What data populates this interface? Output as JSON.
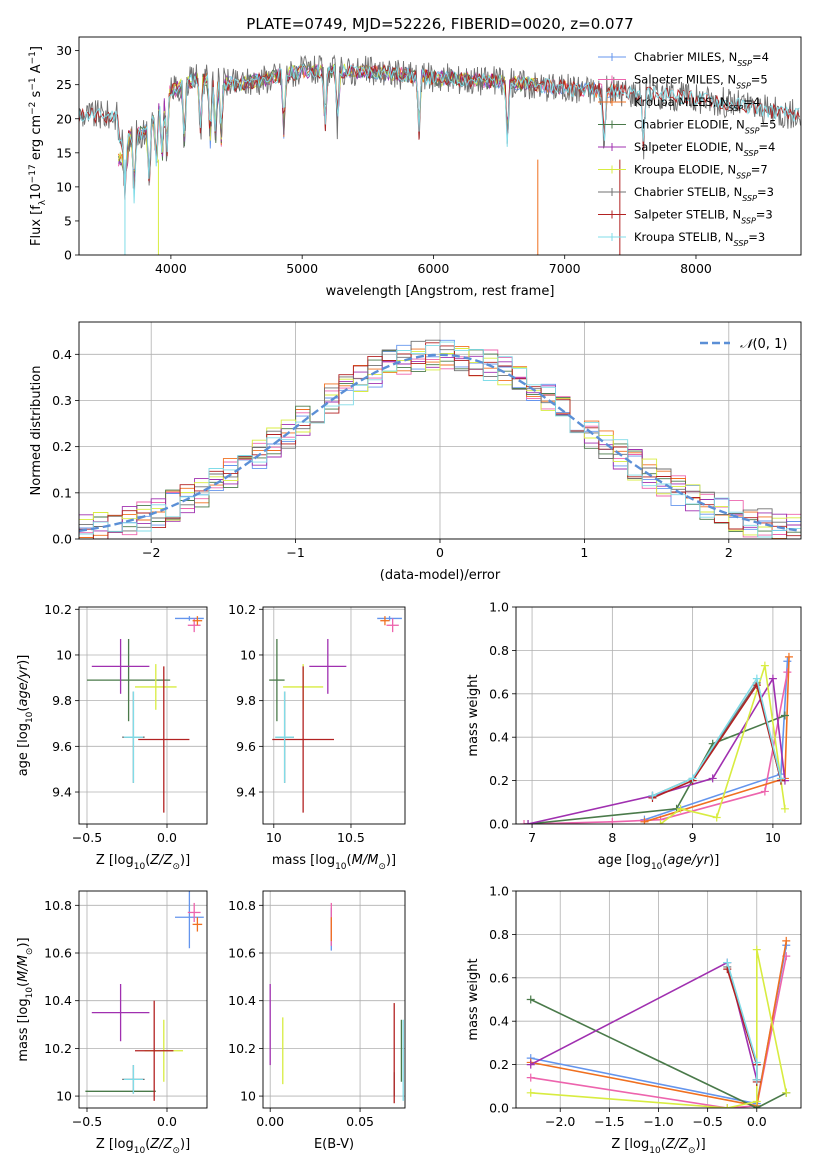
{
  "figure": {
    "title": "PLATE=0749, MJD=52226, FIBERID=0020, z=0.077"
  },
  "colors": {
    "chabrier_miles": "#6495ed",
    "salpeter_miles": "#ed64ad",
    "kroupa_miles": "#f07020",
    "chabrier_elodie": "#4a7a4a",
    "salpeter_elodie": "#a030b0",
    "kroupa_elodie": "#d8ec40",
    "chabrier_stelib": "#707070",
    "salpeter_stelib": "#b22222",
    "kroupa_stelib": "#80dce8",
    "normal_curve": "#5b8fd6"
  },
  "chart_data": [
    {
      "id": "spectrum",
      "type": "line",
      "xlabel": "wavelength [Angstrom, rest frame]",
      "ylabel": "Flux [f_λ10^-17 erg cm^-2 s^-1 A^-1]",
      "xlim": [
        3300,
        8800
      ],
      "ylim": [
        0,
        32
      ],
      "xticks": [
        4000,
        5000,
        6000,
        7000,
        8000
      ],
      "yticks": [
        0,
        5,
        10,
        15,
        20,
        25,
        30
      ],
      "grid": false,
      "legend": "upper right",
      "series": [
        {
          "name": "Chabrier MILES, N_SSP=4",
          "color": "chabrier_miles",
          "x_range": [
            3600,
            7400
          ]
        },
        {
          "name": "Salpeter MILES, N_SSP=5",
          "color": "salpeter_miles",
          "x_range": [
            3600,
            7400
          ]
        },
        {
          "name": "Kroupa MILES, N_SSP=4",
          "color": "kroupa_miles",
          "x_range": [
            3600,
            7400
          ]
        },
        {
          "name": "Chabrier ELODIE, N_SSP=5",
          "color": "chabrier_elodie",
          "x_range": [
            3600,
            6800
          ]
        },
        {
          "name": "Salpeter ELODIE, N_SSP=4",
          "color": "salpeter_elodie",
          "x_range": [
            3600,
            6800
          ]
        },
        {
          "name": "Kroupa ELODIE, N_SSP=7",
          "color": "kroupa_elodie",
          "x_range": [
            3600,
            6800
          ]
        },
        {
          "name": "Chabrier STELIB, N_SSP=3",
          "color": "chabrier_stelib",
          "x_range": [
            3300,
            8800
          ]
        },
        {
          "name": "Salpeter STELIB, N_SSP=3",
          "color": "salpeter_stelib",
          "x_range": [
            3300,
            8800
          ]
        },
        {
          "name": "Kroupa STELIB, N_SSP=3",
          "color": "kroupa_stelib",
          "x_range": [
            3300,
            8800
          ]
        }
      ],
      "continuum": [
        [
          3600,
          17
        ],
        [
          3800,
          18
        ],
        [
          4000,
          24
        ],
        [
          4200,
          26
        ],
        [
          4500,
          25
        ],
        [
          5000,
          27
        ],
        [
          5500,
          27
        ],
        [
          6000,
          26
        ],
        [
          6500,
          25.5
        ],
        [
          7000,
          24.5
        ],
        [
          7400,
          24
        ],
        [
          7800,
          23.5
        ],
        [
          8200,
          22.5
        ],
        [
          8600,
          21
        ],
        [
          8800,
          20.5
        ]
      ],
      "dips": [
        3650,
        3720,
        3835,
        3890,
        3933,
        3970,
        4102,
        4226,
        4300,
        4340,
        4383,
        4861,
        5175,
        5270,
        5890,
        6563,
        7300,
        7600
      ]
    },
    {
      "id": "residuals",
      "type": "bar",
      "xlabel": "(data-model)/error",
      "ylabel": "Normed distribution",
      "xlim": [
        -2.5,
        2.5
      ],
      "ylim": [
        0,
        0.47
      ],
      "xticks": [
        -2,
        -1,
        0,
        1,
        2
      ],
      "yticks": [
        0.0,
        0.1,
        0.2,
        0.3,
        0.4
      ],
      "grid": true,
      "legend": "upper right",
      "bin_width": 0.1,
      "normal_curve": {
        "name": "N(0,1)",
        "mean": 0,
        "sigma": 1
      },
      "series": [
        {
          "color": "chabrier_miles",
          "values_seed": 1
        },
        {
          "color": "salpeter_miles",
          "values_seed": 2
        },
        {
          "color": "kroupa_miles",
          "values_seed": 3
        },
        {
          "color": "chabrier_elodie",
          "values_seed": 4
        },
        {
          "color": "salpeter_elodie",
          "values_seed": 5
        },
        {
          "color": "kroupa_elodie",
          "values_seed": 6
        },
        {
          "color": "chabrier_stelib",
          "values_seed": 7
        },
        {
          "color": "salpeter_stelib",
          "values_seed": 8
        },
        {
          "color": "kroupa_stelib",
          "values_seed": 9
        }
      ]
    },
    {
      "id": "age_vs_Z",
      "type": "scatter",
      "xlabel": "Z [log10(Z/Z⊙)]",
      "ylabel": "age [log10(age/yr)]",
      "xlim": [
        -0.55,
        0.25
      ],
      "ylim": [
        9.26,
        10.21
      ],
      "xticks": [
        -0.5,
        0.0
      ],
      "xticklabels": [
        "−0.5",
        "0.0"
      ],
      "yticks": [
        9.4,
        9.6,
        9.8,
        10.0,
        10.2
      ],
      "grid": true,
      "points": [
        {
          "color": "chabrier_miles",
          "x": 0.14,
          "y": 10.16,
          "xerr": 0.09,
          "yerr": 0.01
        },
        {
          "color": "salpeter_miles",
          "x": 0.17,
          "y": 10.13,
          "xerr": 0.04,
          "yerr": 0.03
        },
        {
          "color": "kroupa_miles",
          "x": 0.19,
          "y": 10.15,
          "xerr": 0.03,
          "yerr": 0.02
        },
        {
          "color": "chabrier_elodie",
          "x": -0.24,
          "y": 9.89,
          "xerr": 0.26,
          "yerr": 0.18
        },
        {
          "color": "salpeter_elodie",
          "x": -0.29,
          "y": 9.95,
          "xerr": 0.18,
          "yerr": 0.12
        },
        {
          "color": "kroupa_elodie",
          "x": -0.07,
          "y": 9.86,
          "xerr": 0.13,
          "yerr": 0.1
        },
        {
          "color": "chabrier_stelib",
          "x": -0.21,
          "y": 9.64,
          "xerr": 0.07,
          "yerr": 0.2
        },
        {
          "color": "salpeter_stelib",
          "x": -0.02,
          "y": 9.63,
          "xerr": 0.16,
          "yerr": 0.32
        },
        {
          "color": "kroupa_stelib",
          "x": -0.21,
          "y": 9.64,
          "xerr": 0.06,
          "yerr": 0.2
        }
      ]
    },
    {
      "id": "age_vs_mass",
      "type": "scatter",
      "xlabel": "mass [log10(M/M⊙)]",
      "ylabel": "",
      "xlim": [
        9.93,
        10.85
      ],
      "ylim": [
        9.26,
        10.21
      ],
      "xticks": [
        10.0,
        10.5
      ],
      "yticks": [
        9.4,
        9.6,
        9.8,
        10.0,
        10.2
      ],
      "grid": true,
      "points": [
        {
          "color": "chabrier_miles",
          "x": 10.75,
          "y": 10.16,
          "xerr": 0.08,
          "yerr": 0.01
        },
        {
          "color": "salpeter_miles",
          "x": 10.77,
          "y": 10.13,
          "xerr": 0.04,
          "yerr": 0.03
        },
        {
          "color": "kroupa_miles",
          "x": 10.72,
          "y": 10.15,
          "xerr": 0.03,
          "yerr": 0.02
        },
        {
          "color": "chabrier_elodie",
          "x": 10.02,
          "y": 9.89,
          "xerr": 0.05,
          "yerr": 0.18
        },
        {
          "color": "salpeter_elodie",
          "x": 10.35,
          "y": 9.95,
          "xerr": 0.12,
          "yerr": 0.12
        },
        {
          "color": "kroupa_elodie",
          "x": 10.19,
          "y": 9.86,
          "xerr": 0.13,
          "yerr": 0.1
        },
        {
          "color": "chabrier_stelib",
          "x": 10.07,
          "y": 9.64,
          "xerr": 0.06,
          "yerr": 0.2
        },
        {
          "color": "salpeter_stelib",
          "x": 10.19,
          "y": 9.63,
          "xerr": 0.2,
          "yerr": 0.32
        },
        {
          "color": "kroupa_stelib",
          "x": 10.07,
          "y": 9.64,
          "xerr": 0.06,
          "yerr": 0.2
        }
      ]
    },
    {
      "id": "weight_vs_age",
      "type": "line",
      "xlabel": "age [log10(age/yr)]",
      "ylabel": "mass weight",
      "xlim": [
        6.8,
        10.35
      ],
      "ylim": [
        0,
        1.0
      ],
      "xticks": [
        7,
        8,
        9,
        10
      ],
      "yticks": [
        0.0,
        0.2,
        0.4,
        0.6,
        0.8,
        1.0
      ],
      "grid": true,
      "series": [
        {
          "color": "chabrier_miles",
          "x": [
            8.4,
            10.1,
            10.18
          ],
          "y": [
            0.02,
            0.23,
            0.75
          ]
        },
        {
          "color": "salpeter_miles",
          "x": [
            6.9,
            8.0,
            8.6,
            9.9,
            10.18
          ],
          "y": [
            0.0,
            0.01,
            0.02,
            0.15,
            0.7
          ]
        },
        {
          "color": "kroupa_miles",
          "x": [
            8.4,
            10.15,
            10.2
          ],
          "y": [
            0.01,
            0.21,
            0.77
          ]
        },
        {
          "color": "chabrier_elodie",
          "x": [
            6.95,
            8.8,
            9.25,
            10.15
          ],
          "y": [
            0.0,
            0.07,
            0.37,
            0.5
          ]
        },
        {
          "color": "salpeter_elodie",
          "x": [
            6.95,
            8.5,
            9.25,
            10.0,
            10.15
          ],
          "y": [
            0.0,
            0.13,
            0.21,
            0.67,
            0.2
          ]
        },
        {
          "color": "kroupa_elodie",
          "x": [
            8.6,
            8.85,
            9.3,
            9.9,
            10.15
          ],
          "y": [
            0.0,
            0.07,
            0.03,
            0.73,
            0.07
          ]
        },
        {
          "color": "chabrier_stelib",
          "x": [
            8.5,
            9.0,
            9.8,
            10.1
          ],
          "y": [
            0.13,
            0.21,
            0.65,
            0.2
          ]
        },
        {
          "color": "salpeter_stelib",
          "x": [
            8.5,
            9.0,
            9.8,
            10.1
          ],
          "y": [
            0.12,
            0.2,
            0.64,
            0.2
          ]
        },
        {
          "color": "kroupa_stelib",
          "x": [
            8.5,
            9.0,
            9.8,
            10.1
          ],
          "y": [
            0.13,
            0.21,
            0.67,
            0.21
          ]
        }
      ]
    },
    {
      "id": "mass_vs_Z",
      "type": "scatter",
      "xlabel": "Z [log10(Z/Z⊙)]",
      "ylabel": "mass [log10(M/M⊙)]",
      "xlim": [
        -0.55,
        0.25
      ],
      "ylim": [
        9.95,
        10.86
      ],
      "xticks": [
        -0.5,
        0.0
      ],
      "xticklabels": [
        "−0.5",
        "0.0"
      ],
      "yticks": [
        10.0,
        10.2,
        10.4,
        10.6,
        10.8
      ],
      "grid": true,
      "points": [
        {
          "color": "chabrier_miles",
          "x": 0.14,
          "y": 10.75,
          "xerr": 0.09,
          "yerr": 0.13
        },
        {
          "color": "salpeter_miles",
          "x": 0.17,
          "y": 10.77,
          "xerr": 0.04,
          "yerr": 0.04
        },
        {
          "color": "kroupa_miles",
          "x": 0.19,
          "y": 10.72,
          "xerr": 0.03,
          "yerr": 0.03
        },
        {
          "color": "chabrier_elodie",
          "x": -0.29,
          "y": 10.02,
          "xerr": 0.22,
          "yerr": 0.0
        },
        {
          "color": "salpeter_elodie",
          "x": -0.29,
          "y": 10.35,
          "xerr": 0.18,
          "yerr": 0.12
        },
        {
          "color": "kroupa_elodie",
          "x": -0.02,
          "y": 10.19,
          "xerr": 0.12,
          "yerr": 0.13
        },
        {
          "color": "chabrier_stelib",
          "x": -0.21,
          "y": 10.07,
          "xerr": 0.07,
          "yerr": 0.06
        },
        {
          "color": "salpeter_stelib",
          "x": -0.08,
          "y": 10.19,
          "xerr": 0.12,
          "yerr": 0.21
        },
        {
          "color": "kroupa_stelib",
          "x": -0.21,
          "y": 10.07,
          "xerr": 0.06,
          "yerr": 0.06
        }
      ]
    },
    {
      "id": "mass_vs_EBV",
      "type": "scatter",
      "xlabel": "E(B-V)",
      "ylabel": "",
      "xlim": [
        -0.004,
        0.075
      ],
      "ylim": [
        9.95,
        10.86
      ],
      "xticks": [
        0.0,
        0.05
      ],
      "xticklabels": [
        "0.00",
        "0.05"
      ],
      "yticks": [
        10.0,
        10.2,
        10.4,
        10.6,
        10.8
      ],
      "grid": true,
      "points": [
        {
          "color": "chabrier_miles",
          "x": 0.034,
          "y": 10.7,
          "xerr": 0.0,
          "yerr": 0.09
        },
        {
          "color": "salpeter_miles",
          "x": 0.034,
          "y": 10.72,
          "xerr": 0.0,
          "yerr": 0.09
        },
        {
          "color": "kroupa_miles",
          "x": 0.034,
          "y": 10.7,
          "xerr": 0.0,
          "yerr": 0.05
        },
        {
          "color": "chabrier_elodie",
          "x": 0.073,
          "y": 10.19,
          "xerr": 0.0,
          "yerr": 0.13
        },
        {
          "color": "salpeter_elodie",
          "x": 0.0,
          "y": 10.3,
          "xerr": 0.0,
          "yerr": 0.17
        },
        {
          "color": "kroupa_elodie",
          "x": 0.007,
          "y": 10.19,
          "xerr": 0.0,
          "yerr": 0.14
        },
        {
          "color": "chabrier_stelib",
          "x": 0.069,
          "y": 10.05,
          "xerr": 0.0,
          "yerr": 0.05
        },
        {
          "color": "salpeter_stelib",
          "x": 0.069,
          "y": 10.18,
          "xerr": 0.0,
          "yerr": 0.21
        },
        {
          "color": "kroupa_stelib",
          "x": 0.074,
          "y": 10.15,
          "xerr": 0.0,
          "yerr": 0.17
        }
      ]
    },
    {
      "id": "weight_vs_Z",
      "type": "line",
      "xlabel": "Z [log10(Z/Z⊙)]",
      "ylabel": "mass weight",
      "xlim": [
        -2.45,
        0.45
      ],
      "ylim": [
        0,
        1.0
      ],
      "xticks": [
        -2.0,
        -1.5,
        -1.0,
        -0.5,
        0.0
      ],
      "xticklabels": [
        "−2.0",
        "−1.5",
        "−1.0",
        "−0.5",
        "0.0"
      ],
      "yticks": [
        0.0,
        0.2,
        0.4,
        0.6,
        0.8,
        1.0
      ],
      "grid": true,
      "series": [
        {
          "color": "chabrier_miles",
          "x": [
            -2.3,
            0.0,
            0.3
          ],
          "y": [
            0.23,
            0.02,
            0.75
          ]
        },
        {
          "color": "salpeter_miles",
          "x": [
            -2.3,
            -0.3,
            0.0,
            0.3
          ],
          "y": [
            0.14,
            0.0,
            0.01,
            0.7
          ]
        },
        {
          "color": "kroupa_miles",
          "x": [
            -2.3,
            0.0,
            0.3
          ],
          "y": [
            0.21,
            0.01,
            0.77
          ]
        },
        {
          "color": "chabrier_elodie",
          "x": [
            -2.3,
            0.0,
            0.3
          ],
          "y": [
            0.5,
            0.0,
            0.07
          ]
        },
        {
          "color": "salpeter_elodie",
          "x": [
            -2.3,
            -0.3,
            0.0
          ],
          "y": [
            0.2,
            0.67,
            0.13
          ]
        },
        {
          "color": "kroupa_elodie",
          "x": [
            -2.3,
            -0.3,
            0.0,
            0.0,
            0.3
          ],
          "y": [
            0.07,
            0.0,
            0.03,
            0.73,
            0.07
          ]
        },
        {
          "color": "chabrier_stelib",
          "x": [
            -0.3,
            0.0,
            0.0
          ],
          "y": [
            0.65,
            0.2,
            0.13
          ]
        },
        {
          "color": "salpeter_stelib",
          "x": [
            -0.3,
            0.0,
            0.0
          ],
          "y": [
            0.64,
            0.2,
            0.12
          ]
        },
        {
          "color": "kroupa_stelib",
          "x": [
            -0.3,
            0.0,
            0.0
          ],
          "y": [
            0.67,
            0.21,
            0.13
          ]
        }
      ]
    }
  ]
}
